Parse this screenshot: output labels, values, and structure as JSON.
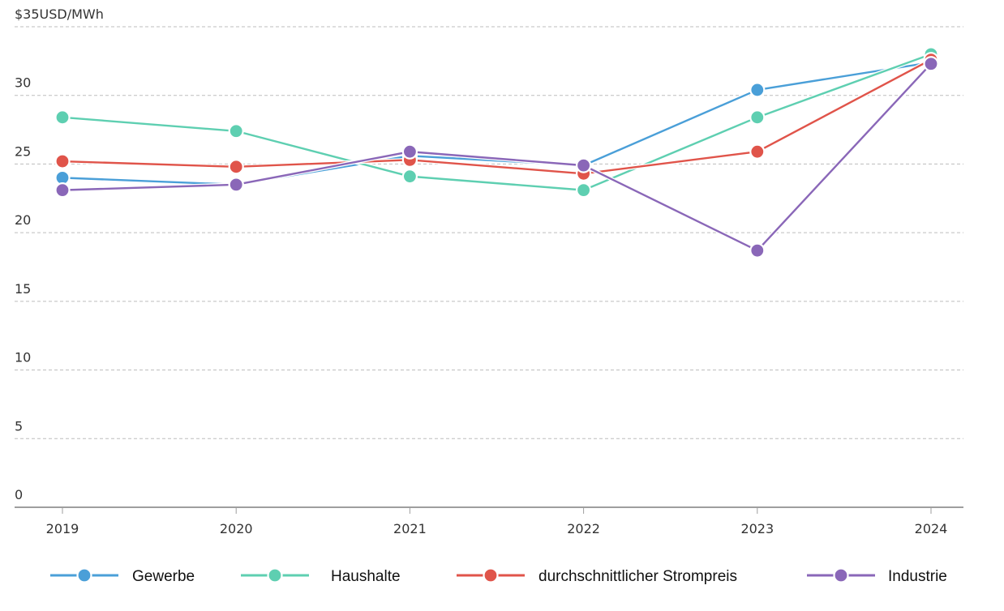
{
  "chart_data": {
    "type": "line",
    "title": "",
    "ylabel": "$35USD/MWh",
    "xlabel": "",
    "categories": [
      "2019",
      "2020",
      "2021",
      "2022",
      "2023",
      "2024"
    ],
    "y_ticks": [
      "0",
      "5",
      "10",
      "15",
      "20",
      "25",
      "30"
    ],
    "ylim": [
      0,
      35
    ],
    "grid": true,
    "legend_position": "bottom",
    "series": [
      {
        "name": "Gewerbe",
        "color": "#4a9fd8",
        "values": [
          24.0,
          23.5,
          25.6,
          24.9,
          30.4,
          32.4
        ]
      },
      {
        "name": "Haushalte",
        "color": "#5ecfb1",
        "values": [
          28.4,
          27.4,
          24.1,
          23.1,
          28.4,
          33.0
        ]
      },
      {
        "name": "durchschnittlicher Strompreis",
        "color": "#e0544a",
        "values": [
          25.2,
          24.8,
          25.3,
          24.3,
          25.9,
          32.6
        ]
      },
      {
        "name": "Industrie",
        "color": "#8a67b8",
        "values": [
          23.1,
          23.5,
          25.9,
          24.9,
          18.7,
          32.3
        ]
      }
    ]
  }
}
